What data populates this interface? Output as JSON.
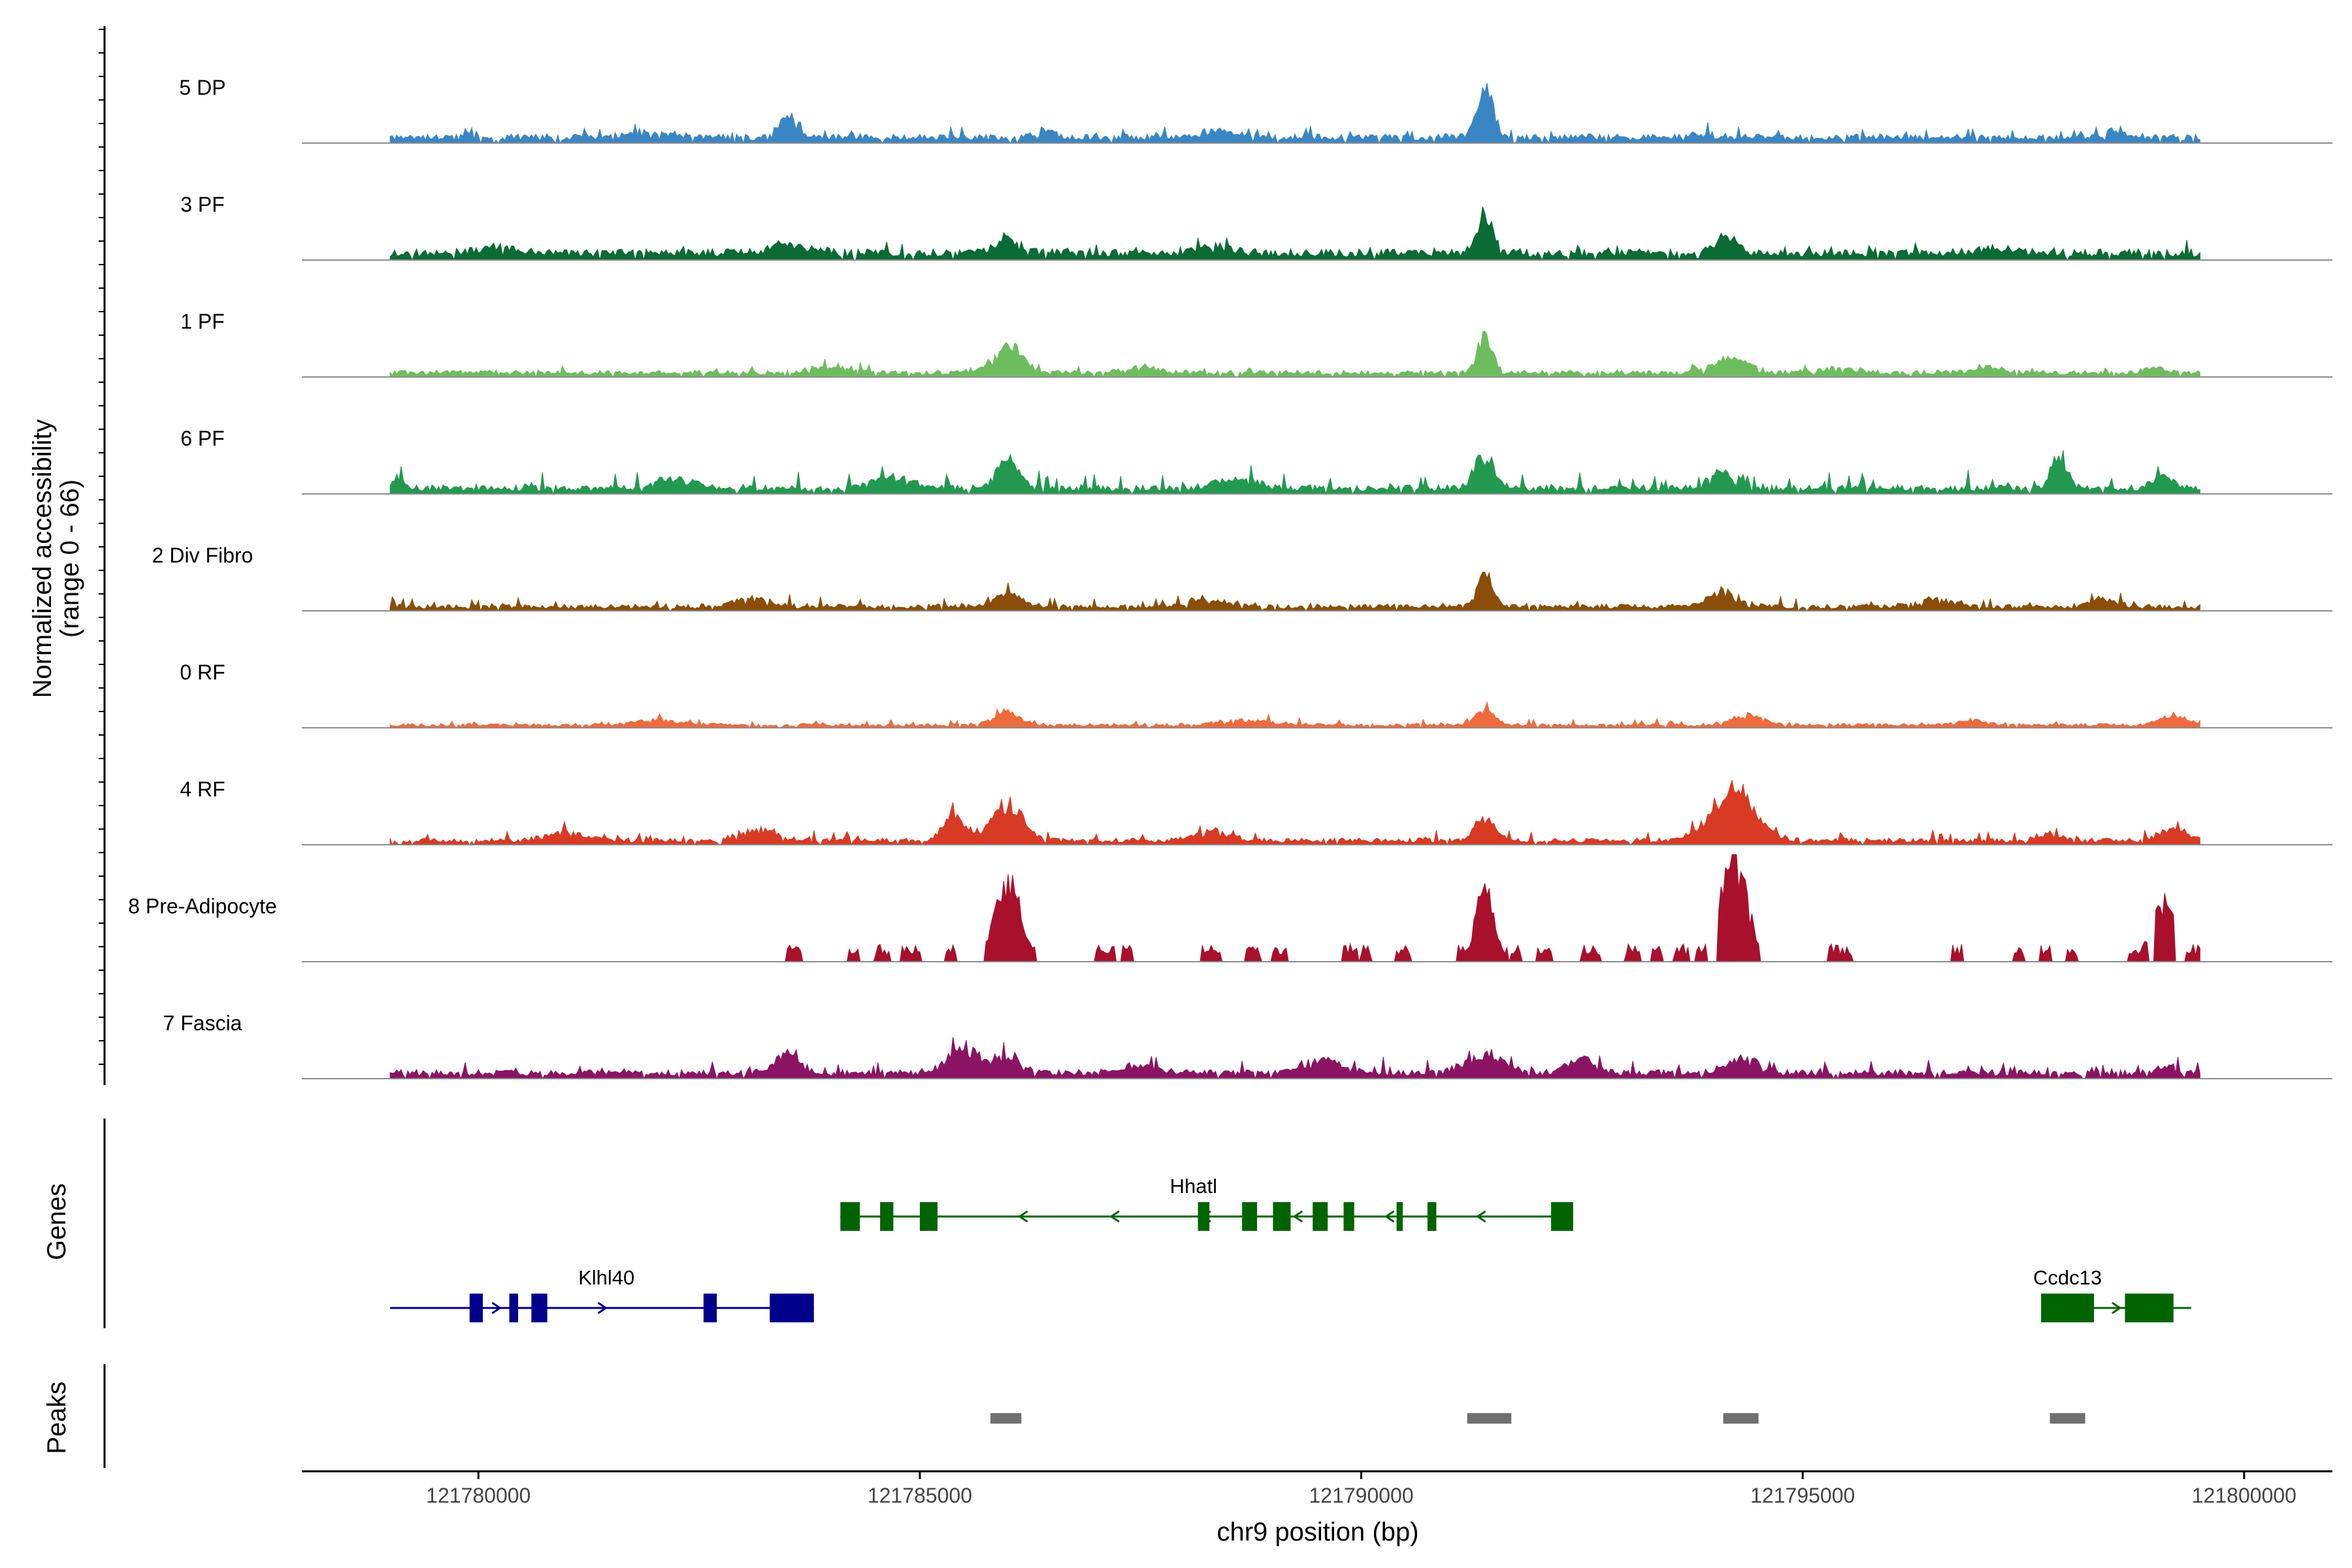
{
  "chart_data": {
    "type": "genome_browser_coverage",
    "ylabel_line1": "Normalized accessibility",
    "ylabel_line2": "(range 0 - 66)",
    "y_range": [
      0,
      66
    ],
    "xlabel": "chr9 position (bp)",
    "xlim": [
      121778000,
      121801000
    ],
    "x_ticks": [
      121780000,
      121785000,
      121790000,
      121795000,
      121800000
    ],
    "x_tick_labels": [
      "121780000",
      "121785000",
      "121790000",
      "121795000",
      "121800000"
    ],
    "signal_start": 121779000,
    "signal_end": 121799500,
    "tracks": [
      {
        "label": "5 DP",
        "color": "#3a86c4",
        "base": 4,
        "noise": 3,
        "sparse": false,
        "peaks": [
          [
            121783500,
            13,
            150
          ],
          [
            121791400,
            30,
            130
          ],
          [
            121786400,
            4,
            150
          ],
          [
            121781900,
            3,
            400
          ],
          [
            121788400,
            4,
            300
          ],
          [
            121793800,
            3,
            200
          ],
          [
            121798600,
            3,
            200
          ]
        ]
      },
      {
        "label": "3 PF",
        "color": "#0b6b35",
        "base": 5,
        "noise": 3,
        "sparse": false,
        "peaks": [
          [
            121791400,
            24,
            130
          ],
          [
            121786000,
            9,
            200
          ],
          [
            121794100,
            9,
            200
          ],
          [
            121783500,
            5,
            300
          ],
          [
            121780200,
            3,
            300
          ],
          [
            121788300,
            4,
            300
          ],
          [
            121797200,
            3,
            300
          ]
        ]
      },
      {
        "label": "1 PF",
        "color": "#6dbd5e",
        "base": 3,
        "noise": 2,
        "sparse": false,
        "peaks": [
          [
            121786000,
            17,
            220
          ],
          [
            121791400,
            24,
            120
          ],
          [
            121794200,
            9,
            260
          ],
          [
            121795400,
            3,
            300
          ],
          [
            121784000,
            4,
            300
          ],
          [
            121787500,
            3,
            300
          ],
          [
            121797100,
            4,
            200
          ],
          [
            121799000,
            3,
            150
          ]
        ]
      },
      {
        "label": "6 PF",
        "color": "#22994f",
        "base": 4,
        "noise": 5,
        "sparse": false,
        "peaks": [
          [
            121786000,
            18,
            170
          ],
          [
            121791400,
            20,
            150
          ],
          [
            121797900,
            18,
            130
          ],
          [
            121794100,
            10,
            220
          ],
          [
            121784700,
            7,
            300
          ],
          [
            121782200,
            6,
            300
          ],
          [
            121788600,
            6,
            300
          ],
          [
            121799100,
            9,
            150
          ],
          [
            121779100,
            6,
            100
          ]
        ]
      },
      {
        "label": "2 Div Fibro",
        "color": "#8a4e0a",
        "base": 3,
        "noise": 3,
        "sparse": false,
        "peaks": [
          [
            121791400,
            20,
            120
          ],
          [
            121786000,
            9,
            200
          ],
          [
            121794100,
            8,
            250
          ],
          [
            121783100,
            5,
            300
          ],
          [
            121788300,
            4,
            300
          ],
          [
            121796500,
            4,
            300
          ],
          [
            121798400,
            5,
            200
          ]
        ]
      },
      {
        "label": "0 RF",
        "color": "#ef6a3c",
        "base": 2,
        "noise": 2,
        "sparse": false,
        "peaks": [
          [
            121786000,
            8,
            200
          ],
          [
            121791400,
            10,
            150
          ],
          [
            121794400,
            6,
            250
          ],
          [
            121782000,
            3,
            400
          ],
          [
            121788700,
            3,
            400
          ],
          [
            121799200,
            6,
            200
          ],
          [
            121796900,
            3,
            200
          ]
        ]
      },
      {
        "label": "4 RF",
        "color": "#d83a24",
        "base": 3,
        "noise": 3,
        "sparse": false,
        "peaks": [
          [
            121785400,
            16,
            170
          ],
          [
            121786000,
            22,
            230
          ],
          [
            121794200,
            30,
            350
          ],
          [
            121791400,
            15,
            150
          ],
          [
            121783200,
            7,
            250
          ],
          [
            121781000,
            5,
            300
          ],
          [
            121799200,
            8,
            200
          ],
          [
            121788300,
            5,
            300
          ],
          [
            121797800,
            4,
            200
          ]
        ]
      },
      {
        "label": "8 Pre-Adipocyte",
        "color": "#a8102c",
        "base": 0,
        "noise": 7,
        "sparse": true,
        "peaks": [
          [
            121786000,
            48,
            200
          ],
          [
            121794200,
            62,
            230
          ],
          [
            121791400,
            44,
            150
          ],
          [
            121799100,
            36,
            200
          ]
        ],
        "blocks": [
          [
            121783500,
            121783650
          ],
          [
            121784200,
            121784300
          ],
          [
            121784500,
            121784650
          ],
          [
            121784800,
            121785000
          ],
          [
            121785300,
            121785400
          ],
          [
            121785750,
            121786300
          ],
          [
            121787000,
            121787200
          ],
          [
            121787300,
            121787400
          ],
          [
            121788200,
            121788400
          ],
          [
            121788700,
            121788850
          ],
          [
            121789000,
            121789150
          ],
          [
            121789800,
            121789950
          ],
          [
            121790000,
            121790120
          ],
          [
            121790400,
            121790550
          ],
          [
            121791100,
            121791350
          ],
          [
            121791350,
            121791650
          ],
          [
            121791700,
            121791800
          ],
          [
            121792000,
            121792150
          ],
          [
            121792500,
            121792700
          ],
          [
            121793000,
            121793150
          ],
          [
            121793300,
            121793400
          ],
          [
            121793550,
            121793700
          ],
          [
            121793800,
            121793920
          ],
          [
            121794050,
            121794500
          ],
          [
            121795300,
            121795550
          ],
          [
            121796700,
            121796800
          ],
          [
            121797400,
            121797500
          ],
          [
            121797700,
            121797800
          ],
          [
            121798000,
            121798120
          ],
          [
            121798700,
            121798900
          ],
          [
            121799000,
            121799200
          ],
          [
            121799350,
            121799500
          ]
        ]
      },
      {
        "label": "7 Fascia",
        "color": "#8a1463",
        "base": 4,
        "noise": 4,
        "sparse": false,
        "peaks": [
          [
            121785500,
            16,
            250
          ],
          [
            121786000,
            10,
            200
          ],
          [
            121783500,
            11,
            200
          ],
          [
            121791400,
            12,
            300
          ],
          [
            121792500,
            10,
            200
          ],
          [
            121789600,
            8,
            250
          ],
          [
            121794300,
            9,
            250
          ],
          [
            121787500,
            5,
            300
          ],
          [
            121799100,
            4,
            150
          ]
        ]
      }
    ],
    "genes_label": "Genes",
    "genes": [
      {
        "name": "Hhatl",
        "color": "#006400",
        "row": 0,
        "strand": "-",
        "start": 121784100,
        "end": 121792400,
        "exons": [
          [
            121784100,
            121784320
          ],
          [
            121784550,
            121784700
          ],
          [
            121785000,
            121785200
          ],
          [
            121788150,
            121788280
          ],
          [
            121788650,
            121788820
          ],
          [
            121789000,
            121789200
          ],
          [
            121789450,
            121789620
          ],
          [
            121789800,
            121789920
          ],
          [
            121790400,
            121790470
          ],
          [
            121790750,
            121790850
          ],
          [
            121792150,
            121792400
          ]
        ],
        "label_pos": 121788100
      },
      {
        "name": "Klhl40",
        "color": "#00008b",
        "row": 1,
        "strand": "+",
        "start": 121779000,
        "end": 121783800,
        "exons": [
          [
            121779900,
            121780050
          ],
          [
            121780350,
            121780450
          ],
          [
            121780600,
            121780780
          ],
          [
            121782550,
            121782700
          ],
          [
            121783300,
            121783800
          ]
        ],
        "label_pos": 121781450
      },
      {
        "name": "Ccdc13",
        "color": "#006400",
        "row": 1,
        "strand": "+",
        "start": 121797700,
        "end": 121799400,
        "exons": [
          [
            121797700,
            121798300
          ],
          [
            121798650,
            121799200
          ]
        ],
        "label_pos": 121798000
      }
    ],
    "peaks_label": "Peaks",
    "peak_regions": [
      [
        121785800,
        121786150
      ],
      [
        121791200,
        121791700
      ],
      [
        121794100,
        121794500
      ],
      [
        121797800,
        121798200
      ]
    ],
    "peak_color": "#707070"
  }
}
